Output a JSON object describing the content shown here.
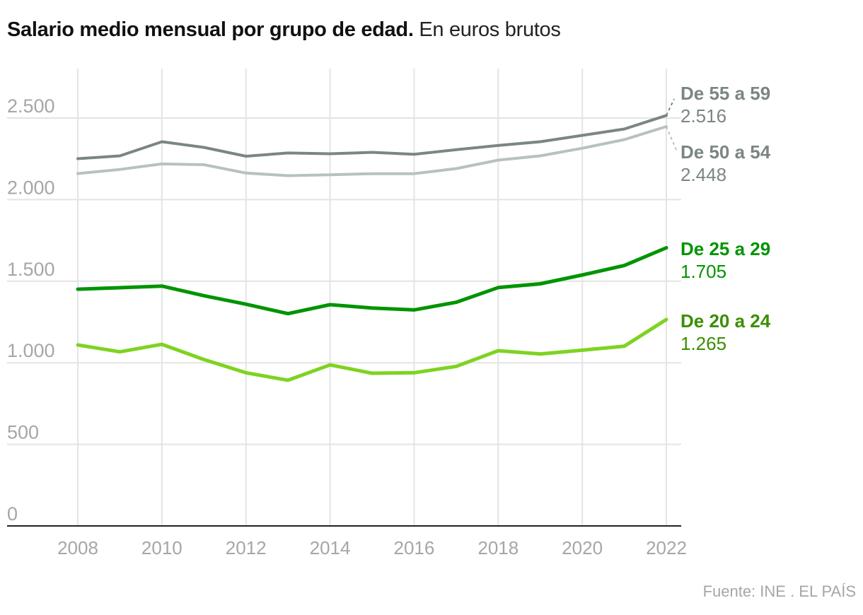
{
  "title": {
    "bold": "Salario medio mensual por grupo de edad",
    "dot": ".",
    "light": " En euros brutos"
  },
  "source": "Fuente: INE . EL PAÍS",
  "chart_data": {
    "type": "line",
    "title": "Salario medio mensual por grupo de edad. En euros brutos",
    "xlabel": "",
    "ylabel": "",
    "x": [
      2008,
      2009,
      2010,
      2011,
      2012,
      2013,
      2014,
      2015,
      2016,
      2017,
      2018,
      2019,
      2020,
      2021,
      2022
    ],
    "xticks": [
      "2008",
      "2010",
      "2012",
      "2014",
      "2016",
      "2018",
      "2020",
      "2022"
    ],
    "xtick_values": [
      2008,
      2010,
      2012,
      2014,
      2016,
      2018,
      2020,
      2022
    ],
    "yticks": [
      "0",
      "500",
      "1.000",
      "1.500",
      "2.000",
      "2.500"
    ],
    "ytick_values": [
      0,
      500,
      1000,
      1500,
      2000,
      2500
    ],
    "ylim": [
      0,
      2500
    ],
    "grid": true,
    "legend": "direct labels at right end of lines",
    "series": [
      {
        "name": "De 55 a 59",
        "end_label": "2.516",
        "color": "#7b8683",
        "label_color": "#7b8683",
        "values": [
          2251,
          2268,
          2355,
          2320,
          2266,
          2286,
          2281,
          2290,
          2278,
          2306,
          2332,
          2355,
          2394,
          2433,
          2516
        ]
      },
      {
        "name": "De 50 a 54",
        "end_label": "2.448",
        "color": "#b7c2be",
        "label_color": "#7b8683",
        "values": [
          2160,
          2185,
          2219,
          2214,
          2163,
          2147,
          2152,
          2159,
          2159,
          2190,
          2242,
          2268,
          2315,
          2368,
          2448
        ]
      },
      {
        "name": "De 25 a 29",
        "end_label": "1.705",
        "color": "#009400",
        "label_color": "#009400",
        "values": [
          1451,
          1460,
          1470,
          1411,
          1359,
          1301,
          1356,
          1336,
          1324,
          1371,
          1461,
          1484,
          1538,
          1596,
          1705
        ]
      },
      {
        "name": "De 20 a 24",
        "end_label": "1.265",
        "color": "#7ed321",
        "label_color": "#3a8f00",
        "values": [
          1109,
          1067,
          1113,
          1020,
          939,
          893,
          987,
          936,
          939,
          978,
          1074,
          1054,
          1077,
          1102,
          1265
        ]
      }
    ]
  }
}
